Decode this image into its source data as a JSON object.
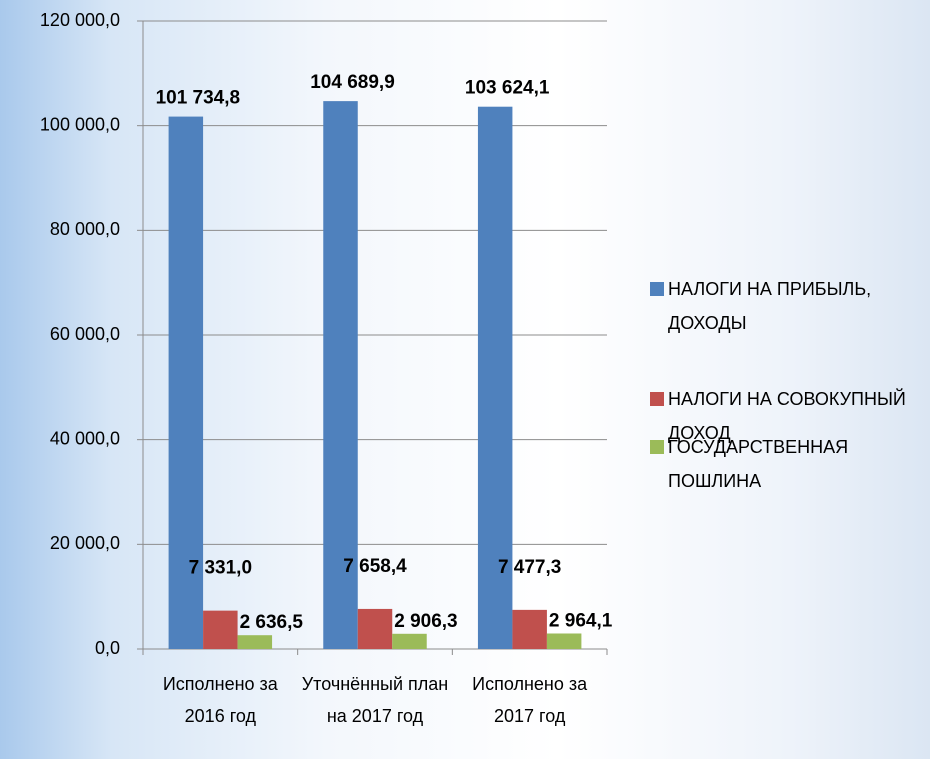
{
  "chart_data": {
    "type": "bar",
    "categories": [
      "Исполнено за 2016 год",
      "Уточнённый план на 2017 год",
      "Исполнено за 2017 год"
    ],
    "series": [
      {
        "name": "НАЛОГИ НА ПРИБЫЛЬ, ДОХОДЫ",
        "color": "#4f81bd",
        "label_color": "#1f3e66",
        "values": [
          101734.8,
          104689.9,
          103624.1
        ],
        "value_labels": [
          "101 734,8",
          "104 689,9",
          "103 624,1"
        ]
      },
      {
        "name": "НАЛОГИ НА СОВОКУПНЫЙ ДОХОД",
        "color": "#c0504d",
        "label_color": "#953735",
        "values": [
          7331.0,
          7658.4,
          7477.3
        ],
        "value_labels": [
          "7 331,0",
          "7 658,4",
          "7 477,3"
        ]
      },
      {
        "name": "ГОСУДАРСТВЕННАЯ ПОШЛИНА",
        "color": "#9bbb59",
        "label_color": "#4f6228",
        "values": [
          2636.5,
          2906.3,
          2964.1
        ],
        "value_labels": [
          "2 636,5",
          "2 906,3",
          "2 964,1"
        ]
      }
    ],
    "ylim": [
      0,
      120000
    ],
    "yticks": [
      {
        "value": 0,
        "label": "0,0"
      },
      {
        "value": 20000,
        "label": "20 000,0"
      },
      {
        "value": 40000,
        "label": "40 000,0"
      },
      {
        "value": 60000,
        "label": "60 000,0"
      },
      {
        "value": 80000,
        "label": "80 000,0"
      },
      {
        "value": 100000,
        "label": "100 000,0"
      },
      {
        "value": 120000,
        "label": "120 000,0"
      }
    ],
    "grid": true,
    "legend": "right"
  }
}
